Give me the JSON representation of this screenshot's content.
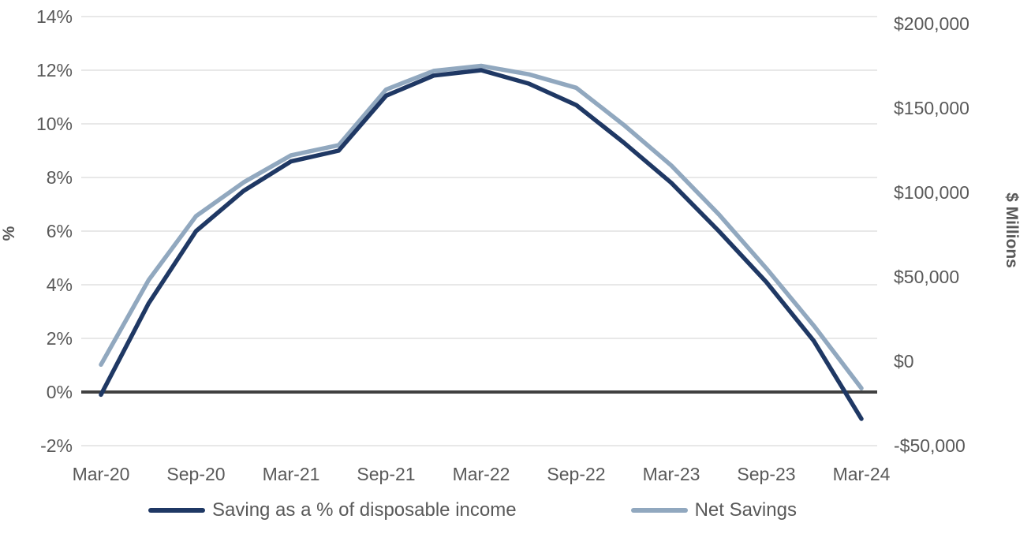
{
  "chart_data": {
    "type": "line",
    "title": "",
    "grid": true,
    "grid_color": "#D9D9D9",
    "zero_line_color": "#404040",
    "x_categories": [
      "Mar-20",
      "Jun-20",
      "Sep-20",
      "Dec-20",
      "Mar-21",
      "Jun-21",
      "Sep-21",
      "Dec-21",
      "Mar-22",
      "Jun-22",
      "Sep-22",
      "Dec-22",
      "Mar-23",
      "Jun-23",
      "Sep-23",
      "Dec-23",
      "Mar-24"
    ],
    "x_tick_labels": [
      "Mar-20",
      "Sep-20",
      "Mar-21",
      "Sep-21",
      "Mar-22",
      "Sep-22",
      "Mar-23",
      "Sep-23",
      "Mar-24"
    ],
    "left_axis": {
      "label": "%",
      "min": -2,
      "max": 14,
      "tick_values": [
        14,
        12,
        10,
        8,
        6,
        4,
        2,
        0,
        -2
      ],
      "tick_labels": [
        "14%",
        "12%",
        "10%",
        "8%",
        "6%",
        "4%",
        "2%",
        "0%",
        "-2%"
      ]
    },
    "right_axis": {
      "label": "$ Millions",
      "min": -50000,
      "max": 200000,
      "tick_values": [
        200000,
        150000,
        100000,
        50000,
        0,
        -50000
      ],
      "tick_labels": [
        "$200,000",
        "$150,000",
        "$100,000",
        "$50,000",
        "$0",
        "-$50,000"
      ]
    },
    "series": [
      {
        "name": "Saving as a % of disposable income",
        "axis": "left",
        "color": "#1F3864",
        "values": [
          -0.1,
          3.3,
          6.0,
          7.5,
          8.6,
          9.0,
          11.05,
          11.8,
          12.0,
          11.5,
          10.7,
          9.3,
          7.8,
          6.0,
          4.1,
          1.9,
          -1.0
        ]
      },
      {
        "name": "Net Savings",
        "axis": "right",
        "color": "#91A8BF",
        "values": [
          -2000,
          48000,
          86000,
          106000,
          122000,
          128000,
          161000,
          172000,
          175000,
          170000,
          162000,
          140000,
          116000,
          87000,
          55000,
          21000,
          -16000
        ]
      }
    ],
    "legend_position": "bottom"
  },
  "legend": {
    "items": [
      {
        "label": "Saving as a % of disposable income",
        "color": "#1F3864"
      },
      {
        "label": "Net Savings",
        "color": "#91A8BF"
      }
    ]
  }
}
